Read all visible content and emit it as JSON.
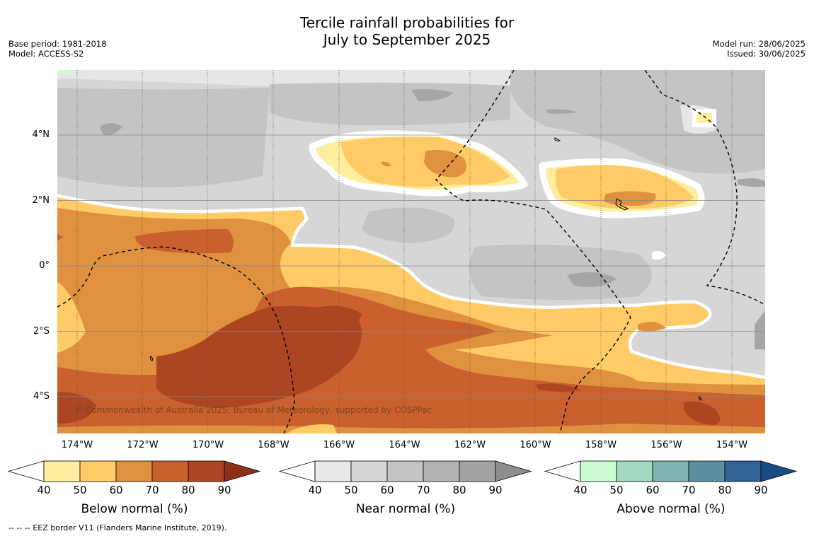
{
  "title": [
    "Tercile rainfall probabilities for",
    "July to September 2025"
  ],
  "base_period": "Base period: 1981-2018",
  "model": "Model: ACCESS-S2",
  "model_run": "Model run: 28/06/2025",
  "issued": "Issued: 30/06/2025",
  "copyright": "© Commonwealth of Australia 2025, Bureau of Meteorology, supported by COSPPac",
  "footnote": "--  --  -- EEZ border V11 (Flanders Marine Institute, 2019).",
  "lat_labels": [
    {
      "text": "4°N",
      "lat": 4
    },
    {
      "text": "2°N",
      "lat": 2
    },
    {
      "text": "0°",
      "lat": 0
    },
    {
      "text": "2°S",
      "lat": -2
    },
    {
      "text": "4°S",
      "lat": -4
    }
  ],
  "lon_labels": [
    {
      "text": "174°W",
      "lon": -174
    },
    {
      "text": "172°W",
      "lon": -172
    },
    {
      "text": "170°W",
      "lon": -170
    },
    {
      "text": "168°W",
      "lon": -168
    },
    {
      "text": "166°W",
      "lon": -166
    },
    {
      "text": "164°W",
      "lon": -164
    },
    {
      "text": "162°W",
      "lon": -162
    },
    {
      "text": "160°W",
      "lon": -160
    },
    {
      "text": "158°W",
      "lon": -158
    },
    {
      "text": "156°W",
      "lon": -156
    },
    {
      "text": "154°W",
      "lon": -154
    }
  ],
  "colorbars": [
    {
      "title": "Below normal (%)",
      "ticks": [
        "40",
        "50",
        "60",
        "70",
        "80",
        "90"
      ],
      "colors": [
        "#ffeea0",
        "#fecb66",
        "#e0913f",
        "#c9602e",
        "#ac4522"
      ],
      "arrow_color": "#8c3118"
    },
    {
      "title": "Near normal (%)",
      "ticks": [
        "40",
        "50",
        "60",
        "70",
        "80",
        "90"
      ],
      "colors": [
        "#e8e8e8",
        "#d6d6d6",
        "#c4c4c4",
        "#b3b3b3",
        "#a3a3a3"
      ],
      "arrow_color": "#8e8e8e"
    },
    {
      "title": "Above normal (%)",
      "ticks": [
        "40",
        "50",
        "60",
        "70",
        "80",
        "90"
      ],
      "colors": [
        "#cbfdd0",
        "#a4d9be",
        "#80b4b3",
        "#5b8fa0",
        "#306296"
      ],
      "arrow_color": "#1a4c84"
    }
  ]
}
